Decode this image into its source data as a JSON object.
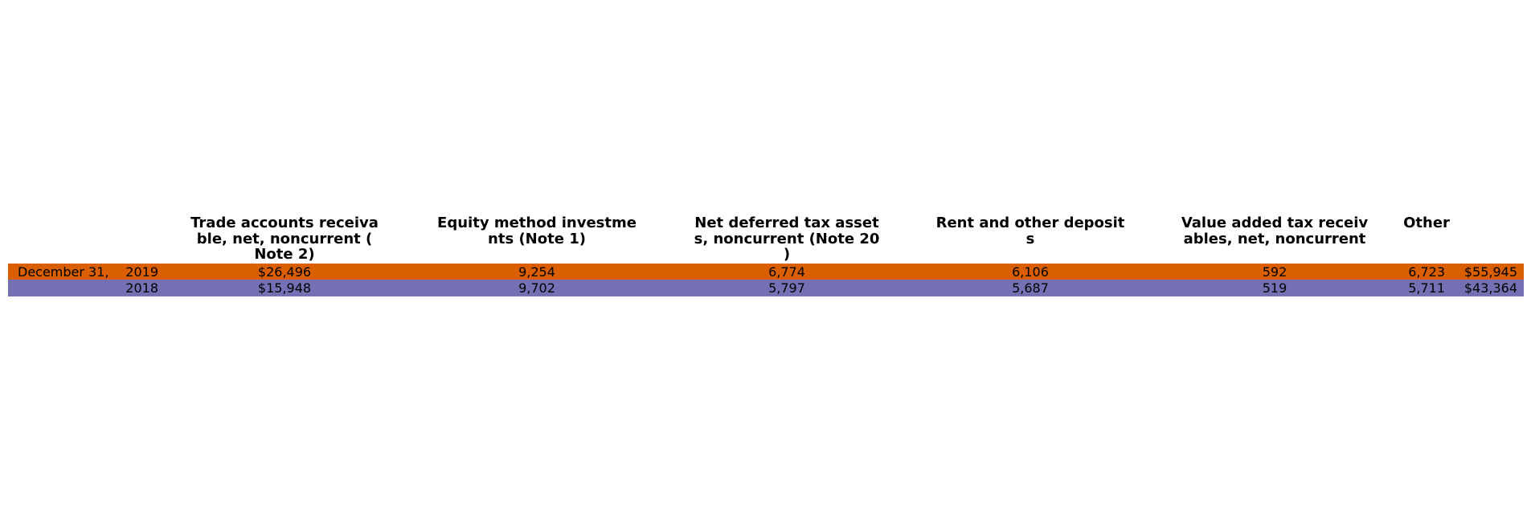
{
  "colors": {
    "row_2019": "#d95f02",
    "row_2018": "#7570b3",
    "background": "#ffffff"
  },
  "chart_data": {
    "type": "table",
    "columns": [
      "Trade accounts receiva\nble, net, noncurrent (\nNote 2)",
      "Equity method investme\nnts (Note 1)",
      "Net deferred tax asset\ns, noncurrent (Note 20\n)",
      "Rent and other deposit\ns",
      "Value added tax receiv\nables, net, noncurrent",
      "Other",
      ""
    ],
    "rows": [
      {
        "group": "December 31,",
        "year": "2019",
        "values": [
          "$26,496",
          "9,254",
          "6,774",
          "6,106",
          "592",
          "6,723",
          "$55,945"
        ]
      },
      {
        "group": "",
        "year": "2018",
        "values": [
          "$15,948",
          "9,702",
          "5,797",
          "5,687",
          "519",
          "5,711",
          "$43,364"
        ]
      }
    ]
  }
}
